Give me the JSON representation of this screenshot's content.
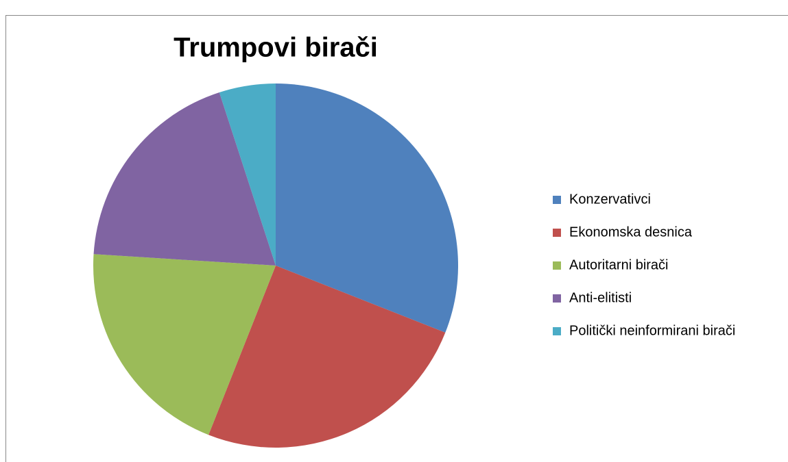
{
  "chart_data": {
    "type": "pie",
    "title": "Trumpovi birači",
    "categories": [
      "Konzervativci",
      "Ekonomska desnica",
      "Autoritarni birači",
      "Anti-elitisti",
      "Politički neinformirani birači"
    ],
    "values": [
      31,
      25,
      20,
      19,
      5
    ],
    "colors": [
      "#4f81bd",
      "#c0504d",
      "#9bbb59",
      "#8064a2",
      "#4bacc6"
    ],
    "legend": "right"
  }
}
